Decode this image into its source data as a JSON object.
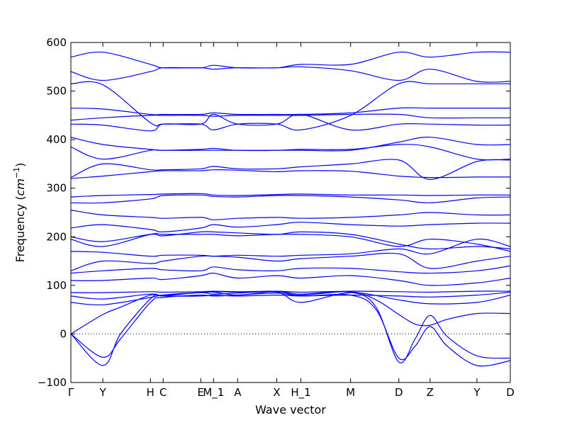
{
  "chart_data": {
    "type": "line",
    "title": "",
    "xlabel": "Wave vector",
    "ylabel_text": "Frequency (",
    "ylabel_unit_base": "cm",
    "ylabel_unit_exp": "−1",
    "ylabel_close": ")",
    "ylim": [
      -100,
      600
    ],
    "y_ticks": [
      -100,
      0,
      100,
      200,
      300,
      400,
      500,
      600
    ],
    "grid": false,
    "zero_line": true,
    "line_color": "#0000ff",
    "x_ticks": [
      {
        "label": "Γ",
        "pos": 0.0
      },
      {
        "label": "Y",
        "pos": 0.45
      },
      {
        "label": "H",
        "pos": 1.12
      },
      {
        "label": "C",
        "pos": 1.3
      },
      {
        "label": "E",
        "pos": 1.83
      },
      {
        "label": "M_1",
        "pos": 2.01
      },
      {
        "label": "A",
        "pos": 2.35
      },
      {
        "label": "X",
        "pos": 2.9
      },
      {
        "label": "H_1",
        "pos": 3.24
      },
      {
        "label": "M",
        "pos": 3.94
      },
      {
        "label": "D",
        "pos": 4.62
      },
      {
        "label": "Z",
        "pos": 5.06
      },
      {
        "label": "Y",
        "pos": 5.72
      },
      {
        "label": "D",
        "pos": 6.19
      }
    ],
    "x_range": [
      0.0,
      6.19
    ],
    "series": [
      {
        "x": [
          0,
          0.45,
          0.7,
          1.12,
          1.3,
          1.83,
          2.01,
          2.35,
          2.9,
          3.24,
          3.94,
          4.3,
          4.62,
          4.85,
          5.06,
          5.3,
          5.72,
          6.19
        ],
        "y": [
          0,
          -48,
          -10,
          65,
          75,
          80,
          78,
          80,
          84,
          78,
          80,
          50,
          -50,
          -25,
          15,
          -25,
          -65,
          -55
        ]
      },
      {
        "x": [
          0,
          0.45,
          0.7,
          1.12,
          1.3,
          1.83,
          2.01,
          2.35,
          2.9,
          3.24,
          3.94,
          4.3,
          4.62,
          4.85,
          5.06,
          5.3,
          5.72,
          6.19
        ],
        "y": [
          0,
          -65,
          0,
          72,
          80,
          85,
          82,
          84,
          88,
          82,
          86,
          55,
          -58,
          -10,
          38,
          -5,
          -45,
          -50
        ]
      },
      {
        "x": [
          0,
          0.45,
          0.7,
          1.12,
          1.3,
          1.83,
          2.01,
          2.35,
          2.9,
          3.24,
          3.94,
          4.3,
          4.62,
          4.85,
          5.06,
          5.3,
          5.72,
          6.19
        ],
        "y": [
          0,
          40,
          55,
          80,
          78,
          86,
          87,
          86,
          87,
          80,
          87,
          70,
          40,
          20,
          18,
          30,
          42,
          42
        ]
      },
      {
        "x": [
          0,
          0.45,
          1.12,
          1.3,
          1.83,
          2.01,
          2.35,
          2.9,
          3.24,
          3.94,
          4.62,
          5.06,
          5.72,
          6.19
        ],
        "y": [
          65,
          60,
          75,
          80,
          85,
          86,
          80,
          86,
          65,
          85,
          70,
          62,
          65,
          80
        ]
      },
      {
        "x": [
          0,
          0.45,
          1.12,
          1.3,
          1.83,
          2.01,
          2.35,
          2.9,
          3.24,
          3.94,
          4.62,
          5.06,
          5.72,
          6.19
        ],
        "y": [
          78,
          72,
          82,
          78,
          78,
          80,
          78,
          80,
          78,
          80,
          78,
          76,
          80,
          86
        ]
      },
      {
        "x": [
          0,
          0.45,
          1.12,
          1.3,
          1.83,
          2.01,
          2.35,
          2.9,
          3.24,
          3.94,
          4.62,
          5.06,
          5.72,
          6.19
        ],
        "y": [
          85,
          85,
          87,
          86,
          87,
          88,
          87,
          88,
          86,
          88,
          87,
          86,
          88,
          88
        ]
      },
      {
        "x": [
          0,
          0.45,
          1.12,
          1.3,
          1.83,
          2.01,
          2.35,
          2.9,
          3.24,
          3.94,
          4.62,
          5.06,
          5.72,
          6.19
        ],
        "y": [
          110,
          110,
          115,
          112,
          120,
          125,
          115,
          120,
          115,
          120,
          110,
          100,
          105,
          115
        ]
      },
      {
        "x": [
          0,
          0.45,
          1.12,
          1.3,
          1.83,
          2.01,
          2.35,
          2.9,
          3.24,
          3.94,
          4.62,
          5.06,
          5.72,
          6.19
        ],
        "y": [
          125,
          130,
          135,
          132,
          130,
          138,
          132,
          130,
          135,
          135,
          128,
          125,
          130,
          140
        ]
      },
      {
        "x": [
          0,
          0.45,
          1.12,
          1.3,
          1.83,
          2.01,
          2.35,
          2.9,
          3.24,
          3.94,
          4.62,
          5.06,
          5.72,
          6.19
        ],
        "y": [
          130,
          150,
          145,
          150,
          160,
          160,
          158,
          150,
          155,
          160,
          165,
          135,
          150,
          160
        ]
      },
      {
        "x": [
          0,
          0.45,
          1.12,
          1.3,
          1.83,
          2.01,
          2.35,
          2.9,
          3.24,
          3.94,
          4.62,
          5.06,
          5.72,
          6.19
        ],
        "y": [
          170,
          168,
          160,
          162,
          162,
          160,
          162,
          160,
          162,
          165,
          175,
          165,
          195,
          180
        ]
      },
      {
        "x": [
          0,
          0.45,
          1.12,
          1.3,
          1.83,
          2.01,
          2.35,
          2.9,
          3.24,
          3.94,
          4.62,
          5.06,
          5.72,
          6.19
        ],
        "y": [
          195,
          180,
          205,
          205,
          205,
          205,
          202,
          205,
          205,
          200,
          180,
          195,
          185,
          170
        ]
      },
      {
        "x": [
          0,
          0.45,
          1.12,
          1.3,
          1.83,
          2.01,
          2.35,
          2.9,
          3.24,
          3.94,
          4.62,
          5.06,
          5.72,
          6.19
        ],
        "y": [
          200,
          190,
          205,
          202,
          210,
          210,
          208,
          205,
          210,
          205,
          185,
          175,
          180,
          175
        ]
      },
      {
        "x": [
          0,
          0.45,
          1.12,
          1.3,
          1.83,
          2.01,
          2.35,
          2.9,
          3.24,
          3.94,
          4.62,
          5.06,
          5.72,
          6.19
        ],
        "y": [
          218,
          225,
          215,
          210,
          218,
          225,
          220,
          225,
          230,
          225,
          222,
          225,
          228,
          228
        ]
      },
      {
        "x": [
          0,
          0.45,
          1.12,
          1.3,
          1.83,
          2.01,
          2.35,
          2.9,
          3.24,
          3.94,
          4.62,
          5.06,
          5.72,
          6.19
        ],
        "y": [
          255,
          245,
          240,
          238,
          240,
          235,
          238,
          240,
          238,
          240,
          245,
          250,
          245,
          245
        ]
      },
      {
        "x": [
          0,
          0.45,
          1.12,
          1.3,
          1.83,
          2.01,
          2.35,
          2.9,
          3.24,
          3.94,
          4.62,
          5.06,
          5.72,
          6.19
        ],
        "y": [
          270,
          270,
          278,
          285,
          286,
          283,
          282,
          285,
          285,
          282,
          276,
          270,
          280,
          282
        ]
      },
      {
        "x": [
          0,
          0.45,
          1.12,
          1.3,
          1.83,
          2.01,
          2.35,
          2.9,
          3.24,
          3.94,
          4.62,
          5.06,
          5.72,
          6.19
        ],
        "y": [
          282,
          285,
          287,
          288,
          289,
          286,
          285,
          287,
          288,
          286,
          286,
          285,
          286,
          286
        ]
      },
      {
        "x": [
          0,
          0.45,
          1.12,
          1.3,
          1.83,
          2.01,
          2.35,
          2.9,
          3.24,
          3.94,
          4.62,
          5.06,
          5.72,
          6.19
        ],
        "y": [
          320,
          325,
          334,
          336,
          336,
          338,
          337,
          334,
          336,
          335,
          325,
          322,
          323,
          323
        ]
      },
      {
        "x": [
          0,
          0.45,
          1.12,
          1.3,
          1.83,
          2.01,
          2.35,
          2.9,
          3.24,
          3.94,
          4.62,
          5.06,
          5.72,
          6.19
        ],
        "y": [
          322,
          350,
          338,
          338,
          340,
          345,
          340,
          340,
          344,
          350,
          358,
          318,
          355,
          358
        ]
      },
      {
        "x": [
          0,
          0.45,
          1.12,
          1.3,
          1.83,
          2.01,
          2.35,
          2.9,
          3.24,
          3.94,
          4.62,
          5.06,
          5.72,
          6.19
        ],
        "y": [
          385,
          360,
          378,
          378,
          380,
          382,
          378,
          378,
          380,
          380,
          390,
          385,
          360,
          360
        ]
      },
      {
        "x": [
          0,
          0.45,
          1.12,
          1.3,
          1.83,
          2.01,
          2.35,
          2.9,
          3.24,
          3.94,
          4.62,
          5.06,
          5.72,
          6.19
        ],
        "y": [
          405,
          390,
          380,
          378,
          378,
          378,
          378,
          378,
          378,
          378,
          395,
          405,
          390,
          390
        ]
      },
      {
        "x": [
          0,
          0.45,
          1.12,
          1.3,
          1.83,
          2.01,
          2.35,
          2.9,
          3.24,
          3.94,
          4.62,
          5.06,
          5.72,
          6.19
        ],
        "y": [
          432,
          430,
          418,
          432,
          432,
          452,
          432,
          432,
          452,
          420,
          432,
          432,
          430,
          430
        ]
      },
      {
        "x": [
          0,
          0.45,
          1.12,
          1.3,
          1.83,
          2.01,
          2.35,
          2.9,
          3.24,
          3.94,
          4.62,
          5.06,
          5.72,
          6.19
        ],
        "y": [
          440,
          445,
          450,
          450,
          450,
          448,
          450,
          450,
          450,
          452,
          452,
          445,
          445,
          445
        ]
      },
      {
        "x": [
          0,
          0.45,
          1.12,
          1.3,
          1.83,
          2.01,
          2.35,
          2.9,
          3.24,
          3.94,
          4.62,
          5.06,
          5.72,
          6.19
        ],
        "y": [
          465,
          463,
          452,
          452,
          452,
          455,
          452,
          452,
          452,
          455,
          465,
          465,
          465,
          465
        ]
      },
      {
        "x": [
          0,
          0.45,
          1.12,
          1.3,
          1.83,
          2.01,
          2.35,
          2.9,
          3.24,
          3.94,
          4.62,
          5.06,
          5.72,
          6.19
        ],
        "y": [
          515,
          513,
          435,
          432,
          432,
          420,
          432,
          432,
          420,
          450,
          515,
          515,
          515,
          515
        ]
      },
      {
        "x": [
          0,
          0.45,
          1.12,
          1.3,
          1.83,
          2.01,
          2.35,
          2.9,
          3.24,
          3.94,
          4.62,
          5.06,
          5.72,
          6.19
        ],
        "y": [
          540,
          522,
          540,
          548,
          548,
          553,
          548,
          548,
          550,
          542,
          522,
          545,
          520,
          520
        ]
      },
      {
        "x": [
          0,
          0.45,
          1.12,
          1.3,
          1.83,
          2.01,
          2.35,
          2.9,
          3.24,
          3.94,
          4.62,
          5.06,
          5.72,
          6.19
        ],
        "y": [
          570,
          580,
          555,
          548,
          548,
          545,
          548,
          548,
          555,
          555,
          580,
          570,
          580,
          580
        ]
      }
    ]
  }
}
